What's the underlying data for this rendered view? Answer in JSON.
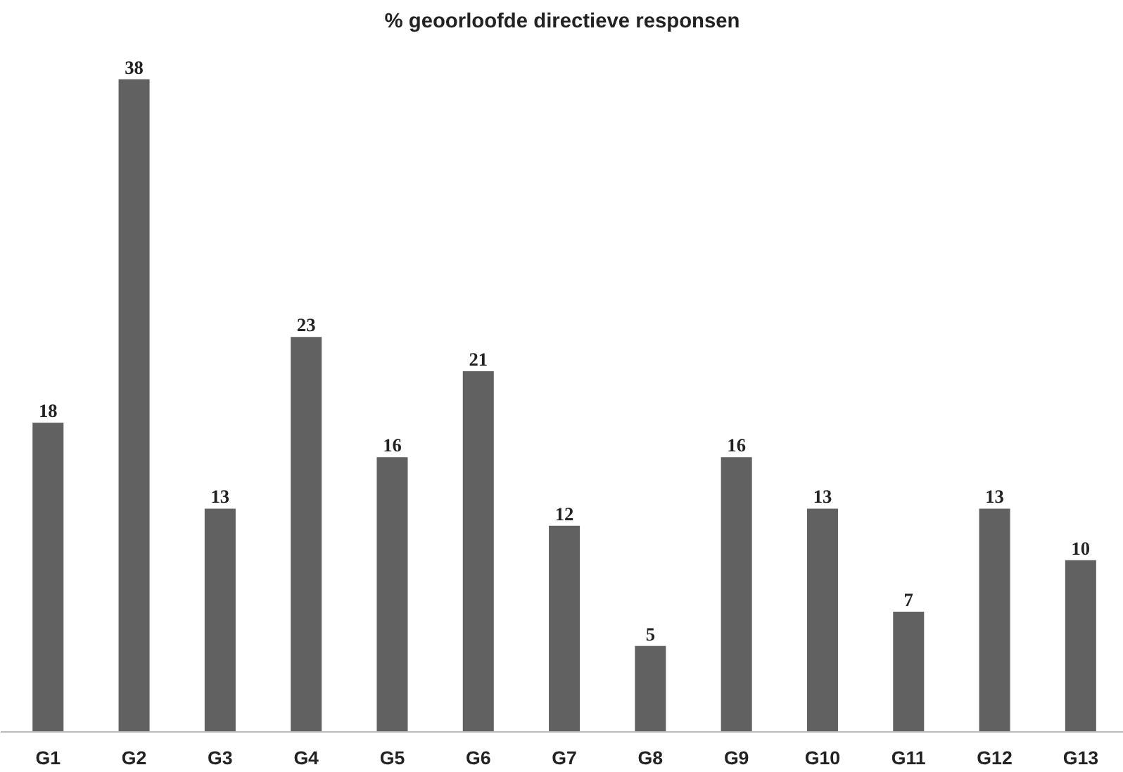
{
  "chart_data": {
    "type": "bar",
    "title": "% geoorloofde directieve responsen",
    "categories": [
      "G1",
      "G2",
      "G3",
      "G4",
      "G5",
      "G6",
      "G7",
      "G8",
      "G9",
      "G10",
      "G11",
      "G12",
      "G13"
    ],
    "values": [
      18,
      38,
      13,
      23,
      16,
      21,
      12,
      5,
      16,
      13,
      7,
      13,
      10
    ],
    "color": "#616161",
    "data_labels": true,
    "grid": false,
    "tick_labels": "x"
  }
}
